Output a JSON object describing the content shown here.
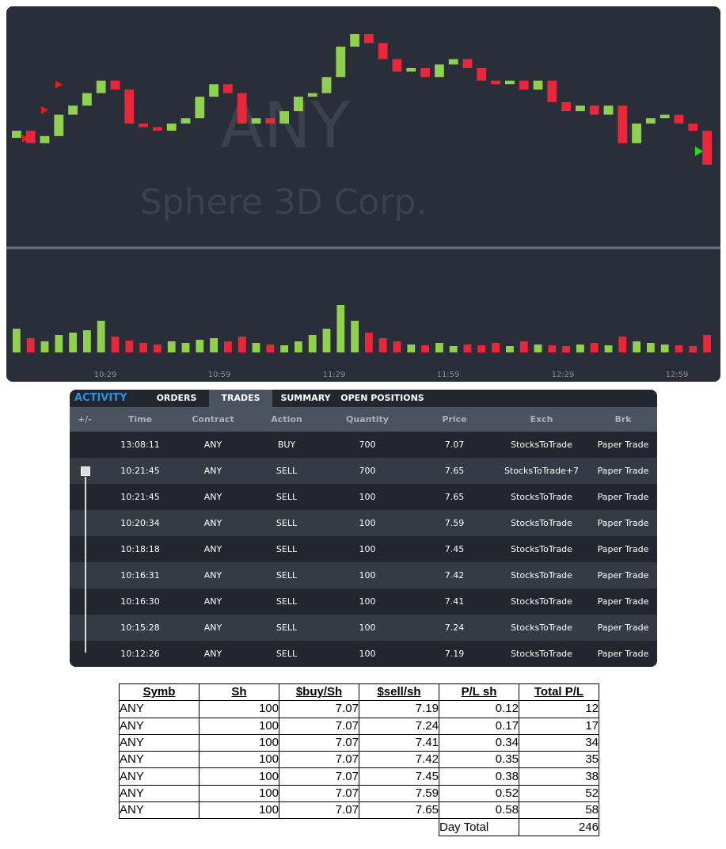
{
  "chart": {
    "symbol": "ANY",
    "company": "Sphere 3D Corp.",
    "time_ticks": [
      "10:29",
      "10:59",
      "11:29",
      "11:59",
      "12:29",
      "12:59"
    ],
    "open": [
      7.15,
      7.19,
      7.12,
      7.16,
      7.28,
      7.33,
      7.4,
      7.47,
      7.42,
      7.23,
      7.21,
      7.19,
      7.23,
      7.26,
      7.38,
      7.45,
      7.4,
      7.23,
      7.26,
      7.23,
      7.3,
      7.38,
      7.4,
      7.49,
      7.66,
      7.73,
      7.68,
      7.59,
      7.52,
      7.54,
      7.49,
      7.56,
      7.59,
      7.54,
      7.47,
      7.45,
      7.47,
      7.42,
      7.47,
      7.35,
      7.3,
      7.33,
      7.28,
      7.33,
      7.12,
      7.23,
      7.26,
      7.28,
      7.23,
      7.19
    ],
    "close": [
      7.19,
      7.12,
      7.16,
      7.28,
      7.33,
      7.4,
      7.47,
      7.42,
      7.23,
      7.21,
      7.19,
      7.23,
      7.26,
      7.38,
      7.45,
      7.4,
      7.23,
      7.26,
      7.23,
      7.3,
      7.38,
      7.4,
      7.49,
      7.66,
      7.73,
      7.68,
      7.59,
      7.52,
      7.54,
      7.49,
      7.56,
      7.59,
      7.54,
      7.47,
      7.45,
      7.47,
      7.42,
      7.47,
      7.35,
      7.3,
      7.33,
      7.28,
      7.33,
      7.12,
      7.23,
      7.26,
      7.28,
      7.23,
      7.19,
      7.0
    ],
    "volume": [
      30,
      18,
      14,
      22,
      25,
      28,
      40,
      20,
      15,
      12,
      10,
      14,
      12,
      16,
      18,
      14,
      20,
      12,
      10,
      9,
      14,
      22,
      30,
      60,
      40,
      25,
      18,
      14,
      10,
      9,
      12,
      8,
      10,
      9,
      12,
      8,
      14,
      10,
      9,
      8,
      10,
      12,
      9,
      20,
      14,
      12,
      10,
      9,
      8,
      22
    ]
  },
  "activity": {
    "title": "ACTIVITY",
    "tabs": [
      "ORDERS",
      "TRADES",
      "SUMMARY",
      "OPEN POSITIONS"
    ],
    "headers": [
      "+/-",
      "Time",
      "Contract",
      "Action",
      "Quantity",
      "Price",
      "Exch",
      "Brk"
    ],
    "rows": [
      [
        "13:08:11",
        "ANY",
        "BUY",
        700,
        7.07,
        "StocksToTrade",
        "Paper Trade"
      ],
      [
        "10:21:45",
        "ANY",
        "SELL",
        700,
        7.65,
        "StocksToTrade+7",
        "Paper Trade"
      ],
      [
        "10:21:45",
        "ANY",
        "SELL",
        100,
        7.65,
        "StocksToTrade",
        "Paper Trade"
      ],
      [
        "10:20:34",
        "ANY",
        "SELL",
        100,
        7.59,
        "StocksToTrade",
        "Paper Trade"
      ],
      [
        "10:18:18",
        "ANY",
        "SELL",
        100,
        7.45,
        "StocksToTrade",
        "Paper Trade"
      ],
      [
        "10:16:31",
        "ANY",
        "SELL",
        100,
        7.42,
        "StocksToTrade",
        "Paper Trade"
      ],
      [
        "10:16:30",
        "ANY",
        "SELL",
        100,
        7.41,
        "StocksToTrade",
        "Paper Trade"
      ],
      [
        "10:15:28",
        "ANY",
        "SELL",
        100,
        7.24,
        "StocksToTrade",
        "Paper Trade"
      ],
      [
        "10:12:26",
        "ANY",
        "SELL",
        100,
        7.19,
        "StocksToTrade",
        "Paper Trade"
      ]
    ]
  },
  "pl_table": {
    "headers": [
      "Symb",
      "Sh",
      "$buy/Sh",
      "$sell/sh",
      "P/L sh",
      "Total P/L"
    ],
    "rows": [
      [
        "ANY",
        100,
        7.07,
        7.19,
        0.12,
        12
      ],
      [
        "ANY",
        100,
        7.07,
        7.24,
        0.17,
        17
      ],
      [
        "ANY",
        100,
        7.07,
        7.41,
        0.34,
        34
      ],
      [
        "ANY",
        100,
        7.07,
        7.42,
        0.35,
        35
      ],
      [
        "ANY",
        100,
        7.07,
        7.45,
        0.38,
        38
      ],
      [
        "ANY",
        100,
        7.07,
        7.59,
        0.52,
        52
      ],
      [
        "ANY",
        100,
        7.07,
        7.65,
        0.58,
        58
      ]
    ],
    "total_label": "Day Total",
    "total_value": 246
  }
}
